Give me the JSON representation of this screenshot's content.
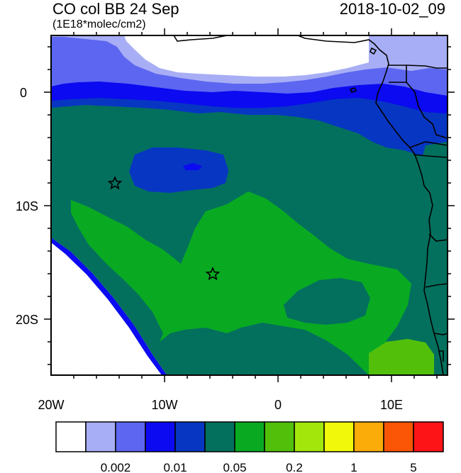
{
  "title": {
    "left": "CO col BB 24 Sep",
    "right": "2018-10-02_09",
    "units": "(1E18*molec/cm2)"
  },
  "axes": {
    "y_ticks": [
      {
        "value": 0,
        "label": "0"
      },
      {
        "value": -10,
        "label": "10S"
      },
      {
        "value": -20,
        "label": "20S"
      }
    ],
    "x_ticks": [
      {
        "value": -20,
        "label": "20W"
      },
      {
        "value": -10,
        "label": "10W"
      },
      {
        "value": 0,
        "label": "0"
      },
      {
        "value": 10,
        "label": "10E"
      }
    ],
    "lon_range": [
      -20,
      15
    ],
    "lat_range": [
      -25,
      5
    ]
  },
  "markers": [
    {
      "name": "star-marker",
      "lon": -14.3,
      "lat": -8
    },
    {
      "name": "star-marker",
      "lon": -5.7,
      "lat": -16
    }
  ],
  "colors": {
    "levels": [
      "#ffffff",
      "#a7aef5",
      "#5d66f0",
      "#0b0af0",
      "#0736c2",
      "#03705e",
      "#09aa22",
      "#52c00b",
      "#a3e60c",
      "#f2f80a",
      "#fbac09",
      "#fb5506",
      "#fd1416"
    ]
  },
  "colorbar": {
    "labels": [
      {
        "text": "0.002",
        "after_box": 2
      },
      {
        "text": "0.01",
        "after_box": 4
      },
      {
        "text": "0.05",
        "after_box": 6
      },
      {
        "text": "0.2",
        "after_box": 8
      },
      {
        "text": "1",
        "after_box": 10
      },
      {
        "text": "5",
        "after_box": 12
      }
    ]
  }
}
